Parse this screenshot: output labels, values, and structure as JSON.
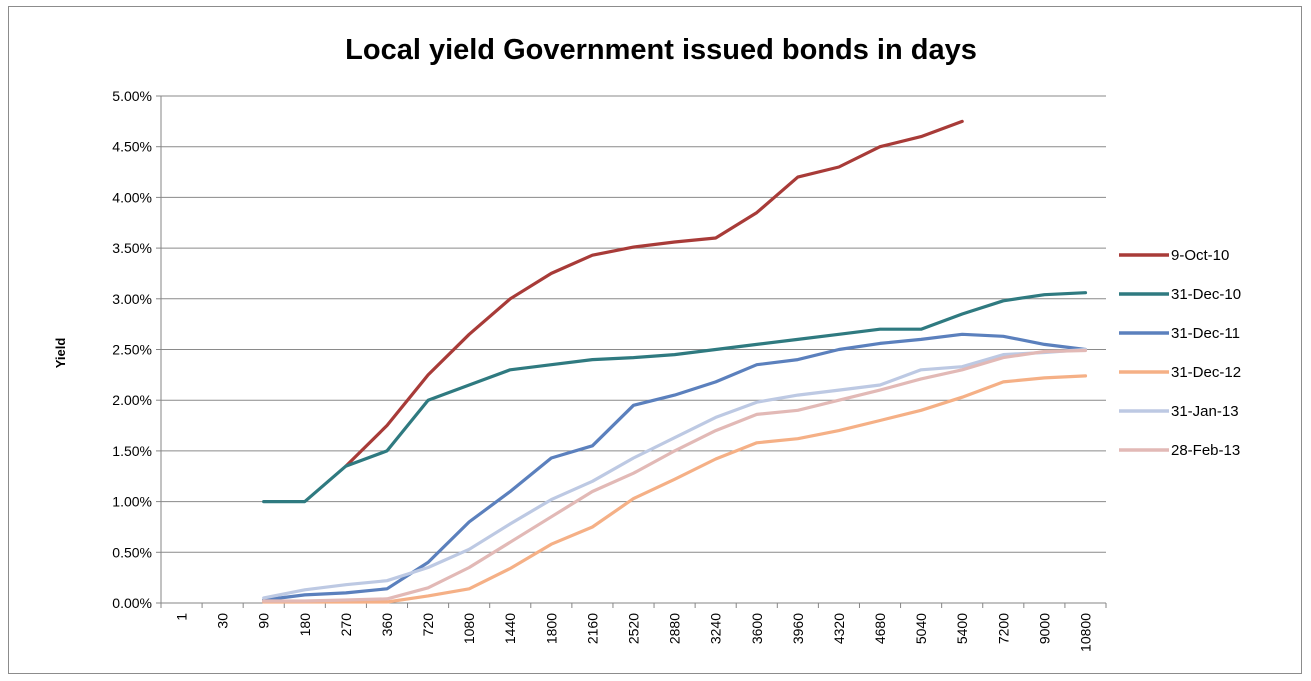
{
  "chart_data": {
    "type": "line",
    "title": "Local yield Government issued bonds in days",
    "xlabel": "",
    "ylabel": "Yield",
    "ylim": [
      0,
      0.05
    ],
    "yticks": [
      "0.00%",
      "0.50%",
      "1.00%",
      "1.50%",
      "2.00%",
      "2.50%",
      "3.00%",
      "3.50%",
      "4.00%",
      "4.50%",
      "5.00%"
    ],
    "grid": "horizontal",
    "legend_position": "right",
    "categories": [
      "1",
      "30",
      "90",
      "180",
      "270",
      "360",
      "720",
      "1080",
      "1440",
      "1800",
      "2160",
      "2520",
      "2880",
      "3240",
      "3600",
      "3960",
      "4320",
      "4680",
      "5040",
      "5400",
      "7200",
      "9000",
      "10800"
    ],
    "series": [
      {
        "name": "9-Oct-10",
        "color": "#a83b38",
        "values": [
          null,
          null,
          null,
          null,
          null,
          null,
          null,
          null,
          null,
          null,
          null,
          null,
          null,
          null,
          null,
          null,
          null,
          null,
          null,
          null,
          null,
          null,
          null
        ]
      },
      {
        "name": "31-Dec-10",
        "color": "#2f7a80",
        "values": [
          null,
          null,
          0.01,
          0.01,
          0.0135,
          0.015,
          0.02,
          0.0215,
          0.023,
          0.0235,
          0.024,
          0.0242,
          0.0245,
          0.025,
          0.0255,
          0.026,
          0.0265,
          0.027,
          0.027,
          0.0285,
          0.0298,
          0.0304,
          0.0306
        ]
      },
      {
        "name": "31-Dec-11",
        "color": "#5b80bd",
        "values": [
          null,
          null,
          0.0003,
          0.0008,
          0.001,
          0.0014,
          0.004,
          0.008,
          0.011,
          0.0143,
          0.0155,
          0.0195,
          0.0205,
          0.0218,
          0.0235,
          0.024,
          0.025,
          0.0256,
          0.026,
          0.0265,
          0.0263,
          0.0255,
          0.025
        ]
      },
      {
        "name": "31-Dec-12",
        "color": "#f5b086",
        "values": [
          null,
          null,
          0.0001,
          0.0001,
          0.0001,
          0.0001,
          0.0007,
          0.0014,
          0.0034,
          0.0058,
          0.0075,
          0.0103,
          0.0122,
          0.0142,
          0.0158,
          0.0162,
          0.017,
          0.018,
          0.019,
          0.0203,
          0.0218,
          0.0222,
          0.0224
        ]
      },
      {
        "name": "31-Jan-13",
        "color": "#bdc9e3",
        "values": [
          null,
          null,
          0.0005,
          0.0013,
          0.0018,
          0.0022,
          0.0035,
          0.0053,
          0.0078,
          0.0102,
          0.012,
          0.0143,
          0.0163,
          0.0183,
          0.0198,
          0.0205,
          0.021,
          0.0215,
          0.023,
          0.0233,
          0.0245,
          0.0247,
          0.025
        ]
      },
      {
        "name": "28-Feb-13",
        "color": "#e2b9b6",
        "values": [
          null,
          null,
          0.0002,
          0.0002,
          0.0003,
          0.0004,
          0.0015,
          0.0035,
          0.006,
          0.0085,
          0.011,
          0.0128,
          0.015,
          0.017,
          0.0186,
          0.019,
          0.02,
          0.021,
          0.0221,
          0.023,
          0.0242,
          0.0248,
          0.0249
        ]
      }
    ]
  }
}
